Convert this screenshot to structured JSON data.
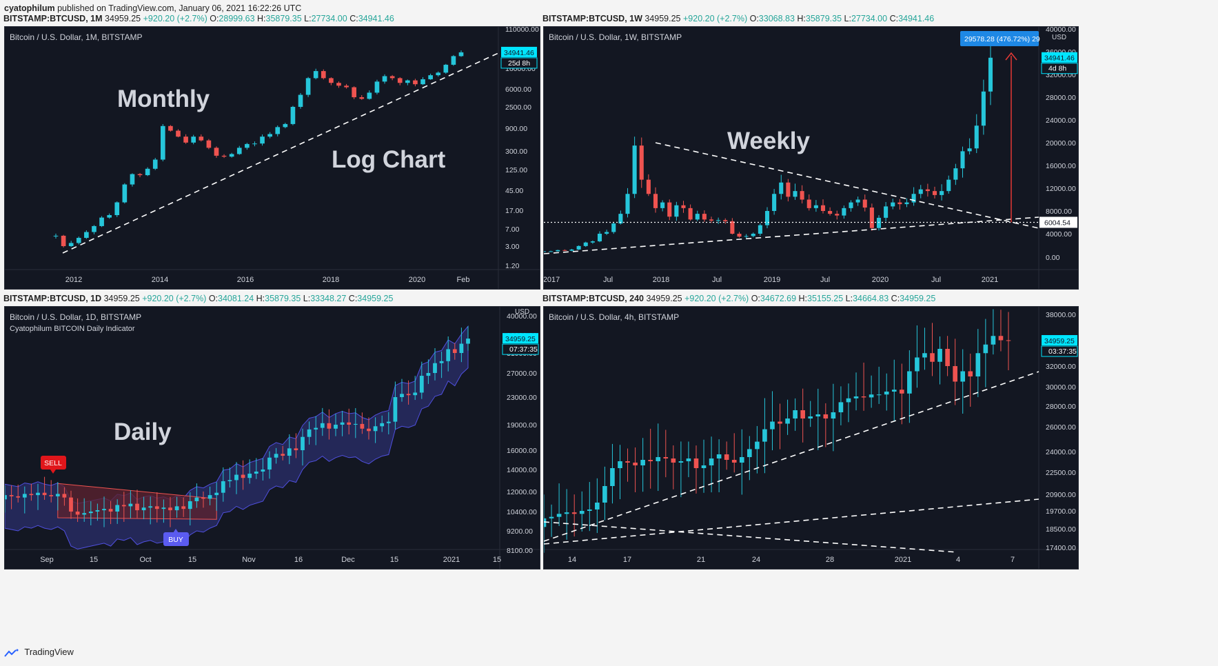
{
  "header": {
    "author": "cyatophilum",
    "published": "published on TradingView.com, January 06, 2021 16:22:26 UTC"
  },
  "footer": {
    "brand": "TradingView"
  },
  "colors": {
    "bg": "#131722",
    "up": "#26c6da",
    "down": "#ef5350",
    "dashed": "#ffffff",
    "axis_text": "#d1d4dc",
    "price_tag": "#00e5ff"
  },
  "panels": [
    {
      "id": "monthly",
      "info": {
        "symbol": "BITSTAMP:BTCUSD, 1M",
        "last": "34959.25",
        "change": "+920.20 (+2.7%)",
        "o": "28999.63",
        "h": "35879.35",
        "l": "27734.00",
        "c": "34941.46"
      },
      "legend": "Bitcoin / U.S. Dollar, 1M, BITSTAMP",
      "annotations": [
        "Monthly",
        "Log Chart"
      ],
      "price_tag": "34941.46",
      "countdown": "25d 8h"
    },
    {
      "id": "weekly",
      "info": {
        "symbol": "BITSTAMP:BTCUSD, 1W",
        "last": "34959.25",
        "change": "+920.20 (+2.7%)",
        "o": "33068.83",
        "h": "35879.35",
        "l": "27734.00",
        "c": "34941.46"
      },
      "legend": "Bitcoin / U.S. Dollar, 1W, BITSTAMP",
      "annotations": [
        "Weekly"
      ],
      "price_tag": "34941.46",
      "countdown": "4d 8h",
      "measure": "29578.28 (476.72%) 29",
      "hline_label": "6004.54",
      "usd": "USD"
    },
    {
      "id": "daily",
      "info": {
        "symbol": "BITSTAMP:BTCUSD, 1D",
        "last": "34959.25",
        "change": "+920.20 (+2.7%)",
        "o": "34081.24",
        "h": "35879.35",
        "l": "33348.27",
        "c": "34959.25"
      },
      "legend": "Bitcoin / U.S. Dollar, 1D, BITSTAMP",
      "indicator": "Cyatophilum BITCOIN Daily Indicator",
      "annotations": [
        "Daily"
      ],
      "price_tag": "34959.25",
      "countdown": "07:37:35",
      "sell": "SELL",
      "buy": "BUY",
      "usd": "USD"
    },
    {
      "id": "h4",
      "info": {
        "symbol": "BITSTAMP:BTCUSD, 240",
        "last": "34959.25",
        "change": "+920.20 (+2.7%)",
        "o": "34672.69",
        "h": "35155.25",
        "l": "34664.83",
        "c": "34959.25"
      },
      "legend": "Bitcoin / U.S. Dollar, 4h, BITSTAMP",
      "annotations": [],
      "price_tag": "34959.25",
      "countdown": "03:37:35"
    }
  ],
  "chart_data": [
    {
      "type": "candlestick",
      "panel": "monthly",
      "scale": "log",
      "x_ticks": [
        "2012",
        "2014",
        "2016",
        "2018",
        "2020",
        "Feb"
      ],
      "y_ticks": [
        "1.20",
        "3.00",
        "7.00",
        "17.00",
        "45.00",
        "125.00",
        "300.00",
        "900.00",
        "2500.00",
        "6000.00",
        "16000.00",
        "110000.00"
      ],
      "close_path": [
        5.0,
        3.0,
        3.5,
        4.5,
        6.0,
        8.0,
        12.0,
        13.5,
        25.0,
        60.0,
        100.0,
        95.0,
        130.0,
        200.0,
        1000.0,
        800.0,
        600.0,
        450.0,
        600.0,
        500.0,
        350.0,
        240.0,
        230.0,
        260.0,
        350.0,
        420.0,
        430.0,
        600.0,
        680.0,
        950.0,
        1100.0,
        2500.0,
        4500.0,
        10000.0,
        14000.0,
        10000.0,
        8000.0,
        7000.0,
        6500.0,
        4000.0,
        3700.0,
        5000.0,
        8500.0,
        11000.0,
        10000.0,
        8000.0,
        9000.0,
        7500.0,
        9500.0,
        11500.0,
        13000.0,
        19000.0,
        29000.0,
        34941.46
      ],
      "trendline": {
        "from": [
          "2011-11",
          2.0
        ],
        "to": [
          "2021-02",
          13000.0
        ]
      }
    },
    {
      "type": "candlestick",
      "panel": "weekly",
      "scale": "linear",
      "x_ticks": [
        "2017",
        "Jul",
        "2018",
        "Jul",
        "2019",
        "Jul",
        "2020",
        "Jul",
        "2021"
      ],
      "y_ticks": [
        "0.00",
        "4000.00",
        "8000.00",
        "12000.00",
        "16000.00",
        "20000.00",
        "24000.00",
        "28000.00",
        "32000.00",
        "36000.00",
        "40000.00"
      ],
      "close_path": [
        1000,
        1000,
        1200,
        1100,
        1300,
        1900,
        2500,
        2700,
        4000,
        4300,
        5800,
        7500,
        11000,
        19500,
        13500,
        11000,
        8500,
        9500,
        7000,
        9000,
        8500,
        6500,
        7500,
        6500,
        6300,
        6400,
        6200,
        4000,
        3500,
        3600,
        4000,
        5500,
        8000,
        11000,
        13000,
        10500,
        11500,
        10000,
        8500,
        9000,
        8000,
        7500,
        7200,
        8500,
        9500,
        10000,
        8600,
        5000,
        6800,
        8800,
        9500,
        9200,
        9500,
        11000,
        11800,
        11500,
        10800,
        11500,
        13500,
        15500,
        18500,
        19000,
        23000,
        29000,
        34941.46
      ],
      "horizontal_line": 6004.54,
      "measure": {
        "label": "29578.28 (476.72%) 29"
      }
    },
    {
      "type": "candlestick",
      "panel": "daily",
      "scale": "log",
      "x_ticks": [
        "Sep",
        "15",
        "Oct",
        "15",
        "Nov",
        "16",
        "Dec",
        "15",
        "2021",
        "15"
      ],
      "y_ticks": [
        "8100.00",
        "9200.00",
        "10400.00",
        "12000.00",
        "14000.00",
        "16000.00",
        "19000.00",
        "23000.00",
        "27000.00",
        "31000.00",
        "36000.00",
        "40000.00"
      ],
      "close_path": [
        11700,
        11600,
        11500,
        11800,
        11700,
        11900,
        11700,
        11600,
        11800,
        11500,
        10400,
        10200,
        10300,
        10400,
        10500,
        10600,
        10400,
        10900,
        10800,
        11000,
        10500,
        10700,
        10800,
        10600,
        10700,
        10500,
        10800,
        10600,
        11200,
        11500,
        11400,
        11700,
        11900,
        12900,
        13000,
        13500,
        13200,
        13600,
        13800,
        14000,
        15200,
        15600,
        15400,
        16200,
        16000,
        17500,
        18400,
        18600,
        19200,
        18500,
        19000,
        19300,
        19000,
        19100,
        18500,
        18200,
        18800,
        19200,
        19400,
        23000,
        23500,
        23300,
        23700,
        26500,
        27000,
        28900,
        29300,
        32000,
        31000,
        33500,
        34959.25
      ],
      "signals": [
        {
          "label": "SELL",
          "date": "Sep"
        },
        {
          "label": "BUY",
          "date": "Oct"
        }
      ]
    },
    {
      "type": "candlestick",
      "panel": "h4",
      "scale": "linear",
      "x_ticks": [
        "14",
        "17",
        "21",
        "24",
        "28",
        "2021",
        "4",
        "7"
      ],
      "y_ticks": [
        "17400.00",
        "18500.00",
        "19700.00",
        "20900.00",
        "22500.00",
        "24000.00",
        "26000.00",
        "28000.00",
        "30000.00",
        "32000.00",
        "38000.00"
      ],
      "close_path": [
        19200,
        19300,
        19500,
        19600,
        19500,
        19700,
        19800,
        20300,
        21500,
        22800,
        23300,
        23200,
        23000,
        23400,
        23300,
        23600,
        23500,
        23200,
        23300,
        23500,
        22800,
        23000,
        23500,
        23800,
        23400,
        23200,
        23600,
        24200,
        24800,
        25800,
        26500,
        26300,
        26800,
        27600,
        26800,
        27000,
        27200,
        26800,
        27400,
        28400,
        28800,
        29000,
        28900,
        29200,
        29200,
        29500,
        29700,
        29300,
        31500,
        33000,
        33500,
        32500,
        34000,
        32000,
        30500,
        31500,
        31000,
        33500,
        34500,
        35500,
        35000,
        34959.25
      ]
    }
  ]
}
